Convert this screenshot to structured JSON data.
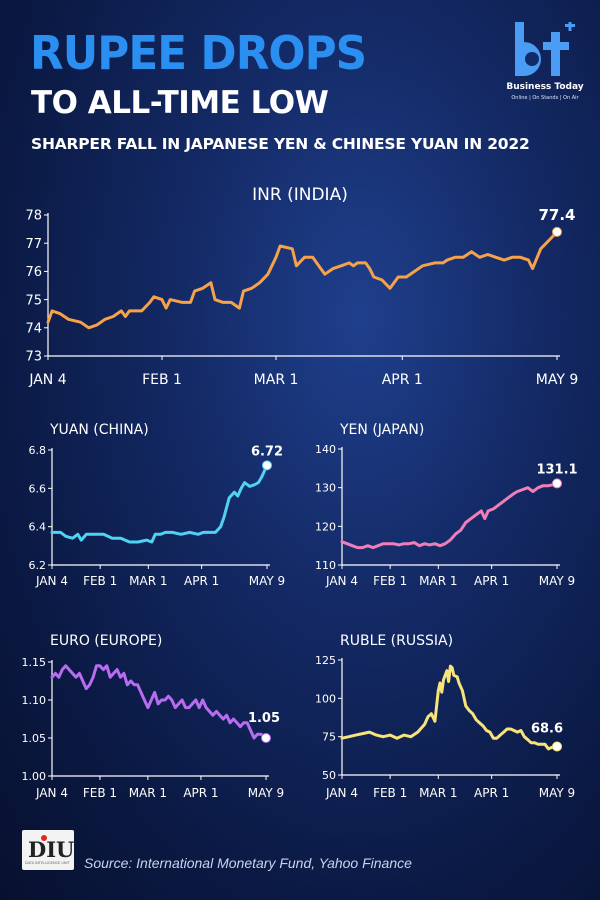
{
  "header": {
    "title_line1": "RUPEE DROPS",
    "title_line2": "TO ALL-TIME LOW",
    "subtitle": "SHARPER FALL IN JAPANESE YEN & CHINESE YUAN IN 2022"
  },
  "logo": {
    "mark": "bt",
    "name": "Business Today",
    "tagline": "Online | On Stands | On Air"
  },
  "footer": {
    "badge": "DIU",
    "badge_small": "DATA INTELLIGENCE UNIT",
    "source": "Source: International Monetary Fund, Yahoo Finance"
  },
  "colors": {
    "inr": "#f5a24a",
    "yuan": "#4fd3f2",
    "yen": "#f07fb8",
    "euro": "#b86cf0",
    "ruble": "#f7e57a",
    "title_blue": "#2a8ff0"
  },
  "chart_data": [
    {
      "id": "inr",
      "type": "line",
      "title": "INR (INDIA)",
      "end_label": "77.4",
      "x_ticks": [
        "JAN 4",
        "FEB 1",
        "MAR 1",
        "APR 1",
        "MAY 9"
      ],
      "x_tick_days": [
        0,
        28,
        56,
        87,
        125
      ],
      "ylim": [
        73,
        78
      ],
      "y_ticks": [
        73,
        74,
        75,
        76,
        77,
        78
      ],
      "y_tick_labels": [
        "73",
        "74",
        "75",
        "76",
        "77",
        "78"
      ],
      "points": [
        [
          0,
          74.2
        ],
        [
          1,
          74.6
        ],
        [
          3,
          74.5
        ],
        [
          5,
          74.3
        ],
        [
          8,
          74.2
        ],
        [
          10,
          74.0
        ],
        [
          12,
          74.1
        ],
        [
          14,
          74.3
        ],
        [
          16,
          74.4
        ],
        [
          18,
          74.6
        ],
        [
          19,
          74.4
        ],
        [
          20,
          74.6
        ],
        [
          23,
          74.6
        ],
        [
          25,
          74.9
        ],
        [
          26,
          75.1
        ],
        [
          28,
          75.0
        ],
        [
          29,
          74.7
        ],
        [
          30,
          75.0
        ],
        [
          33,
          74.9
        ],
        [
          35,
          74.9
        ],
        [
          36,
          75.3
        ],
        [
          38,
          75.4
        ],
        [
          40,
          75.6
        ],
        [
          41,
          75.0
        ],
        [
          43,
          74.9
        ],
        [
          45,
          74.9
        ],
        [
          47,
          74.7
        ],
        [
          48,
          75.3
        ],
        [
          50,
          75.4
        ],
        [
          52,
          75.6
        ],
        [
          54,
          75.9
        ],
        [
          56,
          76.5
        ],
        [
          57,
          76.9
        ],
        [
          60,
          76.8
        ],
        [
          61,
          76.2
        ],
        [
          63,
          76.5
        ],
        [
          65,
          76.5
        ],
        [
          67,
          76.1
        ],
        [
          68,
          75.9
        ],
        [
          70,
          76.1
        ],
        [
          72,
          76.2
        ],
        [
          74,
          76.3
        ],
        [
          75,
          76.2
        ],
        [
          76,
          76.3
        ],
        [
          78,
          76.3
        ],
        [
          79,
          76.1
        ],
        [
          80,
          75.8
        ],
        [
          82,
          75.7
        ],
        [
          84,
          75.4
        ],
        [
          86,
          75.8
        ],
        [
          88,
          75.8
        ],
        [
          90,
          76.0
        ],
        [
          92,
          76.2
        ],
        [
          95,
          76.3
        ],
        [
          97,
          76.3
        ],
        [
          98,
          76.4
        ],
        [
          100,
          76.5
        ],
        [
          102,
          76.5
        ],
        [
          104,
          76.7
        ],
        [
          106,
          76.5
        ],
        [
          108,
          76.6
        ],
        [
          110,
          76.5
        ],
        [
          112,
          76.4
        ],
        [
          114,
          76.5
        ],
        [
          116,
          76.5
        ],
        [
          118,
          76.4
        ],
        [
          119,
          76.1
        ],
        [
          121,
          76.8
        ],
        [
          123,
          77.1
        ],
        [
          125,
          77.4
        ]
      ]
    },
    {
      "id": "yuan",
      "type": "line",
      "title": "YUAN (CHINA)",
      "end_label": "6.72",
      "x_ticks": [
        "JAN 4",
        "FEB 1",
        "MAR 1",
        "APR 1",
        "MAY 9"
      ],
      "x_tick_days": [
        0,
        28,
        56,
        87,
        125
      ],
      "ylim": [
        6.2,
        6.8
      ],
      "y_ticks": [
        6.2,
        6.4,
        6.6,
        6.8
      ],
      "y_tick_labels": [
        "6.2",
        "6.4",
        "6.6",
        "6.8"
      ],
      "points": [
        [
          0,
          6.37
        ],
        [
          5,
          6.37
        ],
        [
          8,
          6.35
        ],
        [
          12,
          6.34
        ],
        [
          15,
          6.36
        ],
        [
          17,
          6.33
        ],
        [
          20,
          6.36
        ],
        [
          25,
          6.36
        ],
        [
          30,
          6.36
        ],
        [
          35,
          6.34
        ],
        [
          40,
          6.34
        ],
        [
          45,
          6.32
        ],
        [
          50,
          6.32
        ],
        [
          55,
          6.33
        ],
        [
          58,
          6.32
        ],
        [
          60,
          6.36
        ],
        [
          63,
          6.36
        ],
        [
          66,
          6.37
        ],
        [
          70,
          6.37
        ],
        [
          75,
          6.36
        ],
        [
          80,
          6.37
        ],
        [
          85,
          6.36
        ],
        [
          88,
          6.37
        ],
        [
          92,
          6.37
        ],
        [
          95,
          6.37
        ],
        [
          98,
          6.4
        ],
        [
          100,
          6.45
        ],
        [
          103,
          6.55
        ],
        [
          106,
          6.58
        ],
        [
          108,
          6.56
        ],
        [
          110,
          6.6
        ],
        [
          112,
          6.63
        ],
        [
          115,
          6.61
        ],
        [
          118,
          6.62
        ],
        [
          120,
          6.63
        ],
        [
          122,
          6.66
        ],
        [
          125,
          6.72
        ]
      ]
    },
    {
      "id": "yen",
      "type": "line",
      "title": "YEN (JAPAN)",
      "end_label": "131.1",
      "x_ticks": [
        "JAN 4",
        "FEB 1",
        "MAR 1",
        "APR 1",
        "MAY 9"
      ],
      "x_tick_days": [
        0,
        28,
        56,
        87,
        125
      ],
      "ylim": [
        110,
        140
      ],
      "y_ticks": [
        110,
        120,
        130,
        140
      ],
      "y_tick_labels": [
        "110",
        "120",
        "130",
        "140"
      ],
      "points": [
        [
          0,
          116
        ],
        [
          3,
          115.5
        ],
        [
          6,
          115
        ],
        [
          9,
          114.5
        ],
        [
          12,
          114.5
        ],
        [
          15,
          115
        ],
        [
          18,
          114.5
        ],
        [
          21,
          115
        ],
        [
          24,
          115.5
        ],
        [
          27,
          115.5
        ],
        [
          30,
          115.5
        ],
        [
          33,
          115.2
        ],
        [
          36,
          115.5
        ],
        [
          39,
          115.5
        ],
        [
          42,
          115.8
        ],
        [
          45,
          115.0
        ],
        [
          48,
          115.5
        ],
        [
          51,
          115.2
        ],
        [
          54,
          115.5
        ],
        [
          57,
          115.0
        ],
        [
          60,
          115.5
        ],
        [
          63,
          116.5
        ],
        [
          66,
          118
        ],
        [
          69,
          119
        ],
        [
          72,
          121
        ],
        [
          75,
          122
        ],
        [
          78,
          123
        ],
        [
          81,
          124
        ],
        [
          83,
          122
        ],
        [
          85,
          124
        ],
        [
          88,
          124.5
        ],
        [
          91,
          125.5
        ],
        [
          94,
          126.5
        ],
        [
          97,
          127.5
        ],
        [
          100,
          128.5
        ],
        [
          102,
          129
        ],
        [
          105,
          129.5
        ],
        [
          108,
          130
        ],
        [
          111,
          129
        ],
        [
          114,
          130
        ],
        [
          117,
          130.5
        ],
        [
          120,
          130.5
        ],
        [
          123,
          130.8
        ],
        [
          125,
          131.1
        ]
      ]
    },
    {
      "id": "euro",
      "type": "line",
      "title": "EURO (EUROPE)",
      "end_label": "1.05",
      "x_ticks": [
        "JAN 4",
        "FEB 1",
        "MAR 1",
        "APR 1",
        "MAY 9"
      ],
      "x_tick_days": [
        0,
        28,
        56,
        87,
        125
      ],
      "ylim": [
        1.0,
        1.15
      ],
      "y_ticks": [
        1.0,
        1.05,
        1.1,
        1.15
      ],
      "y_tick_labels": [
        "1.00",
        "1.05",
        "1.10",
        "1.15"
      ],
      "points": [
        [
          0,
          1.13
        ],
        [
          2,
          1.135
        ],
        [
          4,
          1.13
        ],
        [
          6,
          1.14
        ],
        [
          8,
          1.145
        ],
        [
          10,
          1.14
        ],
        [
          12,
          1.135
        ],
        [
          14,
          1.13
        ],
        [
          16,
          1.135
        ],
        [
          18,
          1.125
        ],
        [
          20,
          1.115
        ],
        [
          22,
          1.12
        ],
        [
          24,
          1.13
        ],
        [
          26,
          1.145
        ],
        [
          28,
          1.145
        ],
        [
          30,
          1.14
        ],
        [
          32,
          1.145
        ],
        [
          34,
          1.13
        ],
        [
          36,
          1.135
        ],
        [
          38,
          1.14
        ],
        [
          40,
          1.13
        ],
        [
          42,
          1.135
        ],
        [
          44,
          1.12
        ],
        [
          46,
          1.125
        ],
        [
          48,
          1.12
        ],
        [
          50,
          1.12
        ],
        [
          52,
          1.11
        ],
        [
          54,
          1.1
        ],
        [
          56,
          1.09
        ],
        [
          58,
          1.1
        ],
        [
          60,
          1.11
        ],
        [
          62,
          1.095
        ],
        [
          64,
          1.1
        ],
        [
          66,
          1.1
        ],
        [
          68,
          1.105
        ],
        [
          70,
          1.1
        ],
        [
          72,
          1.09
        ],
        [
          74,
          1.095
        ],
        [
          76,
          1.1
        ],
        [
          78,
          1.09
        ],
        [
          80,
          1.09
        ],
        [
          82,
          1.095
        ],
        [
          84,
          1.1
        ],
        [
          86,
          1.09
        ],
        [
          88,
          1.1
        ],
        [
          90,
          1.09
        ],
        [
          92,
          1.085
        ],
        [
          94,
          1.08
        ],
        [
          96,
          1.085
        ],
        [
          98,
          1.08
        ],
        [
          100,
          1.075
        ],
        [
          102,
          1.08
        ],
        [
          104,
          1.07
        ],
        [
          106,
          1.075
        ],
        [
          108,
          1.07
        ],
        [
          110,
          1.065
        ],
        [
          112,
          1.07
        ],
        [
          114,
          1.07
        ],
        [
          116,
          1.06
        ],
        [
          118,
          1.05
        ],
        [
          120,
          1.055
        ],
        [
          122,
          1.055
        ],
        [
          125,
          1.05
        ]
      ]
    },
    {
      "id": "ruble",
      "type": "line",
      "title": "RUBLE (RUSSIA)",
      "end_label": "68.6",
      "x_ticks": [
        "JAN 4",
        "FEB 1",
        "MAR 1",
        "APR 1",
        "MAY 9"
      ],
      "x_tick_days": [
        0,
        28,
        56,
        87,
        125
      ],
      "ylim": [
        50,
        125
      ],
      "y_ticks": [
        50,
        75,
        100,
        125
      ],
      "y_tick_labels": [
        "50",
        "75",
        "100",
        "125"
      ],
      "points": [
        [
          0,
          74
        ],
        [
          4,
          75
        ],
        [
          8,
          76
        ],
        [
          12,
          77
        ],
        [
          16,
          78
        ],
        [
          20,
          76
        ],
        [
          24,
          75
        ],
        [
          28,
          76
        ],
        [
          32,
          74
        ],
        [
          36,
          76
        ],
        [
          40,
          75
        ],
        [
          44,
          78
        ],
        [
          48,
          83
        ],
        [
          50,
          88
        ],
        [
          52,
          90
        ],
        [
          54,
          85
        ],
        [
          56,
          105
        ],
        [
          57,
          110
        ],
        [
          58,
          104
        ],
        [
          59,
          112
        ],
        [
          61,
          118
        ],
        [
          62,
          111
        ],
        [
          63,
          121
        ],
        [
          64,
          120
        ],
        [
          65,
          115
        ],
        [
          67,
          114
        ],
        [
          68,
          110
        ],
        [
          70,
          105
        ],
        [
          72,
          95
        ],
        [
          74,
          92
        ],
        [
          76,
          90
        ],
        [
          78,
          86
        ],
        [
          80,
          84
        ],
        [
          82,
          82
        ],
        [
          84,
          79
        ],
        [
          86,
          78
        ],
        [
          88,
          74
        ],
        [
          90,
          74
        ],
        [
          92,
          76
        ],
        [
          94,
          78
        ],
        [
          96,
          80
        ],
        [
          98,
          80
        ],
        [
          100,
          79
        ],
        [
          102,
          78
        ],
        [
          104,
          79
        ],
        [
          106,
          75
        ],
        [
          108,
          73
        ],
        [
          110,
          71
        ],
        [
          112,
          71
        ],
        [
          114,
          70
        ],
        [
          116,
          70
        ],
        [
          118,
          70
        ],
        [
          120,
          67
        ],
        [
          122,
          68
        ],
        [
          125,
          68.6
        ]
      ]
    }
  ]
}
